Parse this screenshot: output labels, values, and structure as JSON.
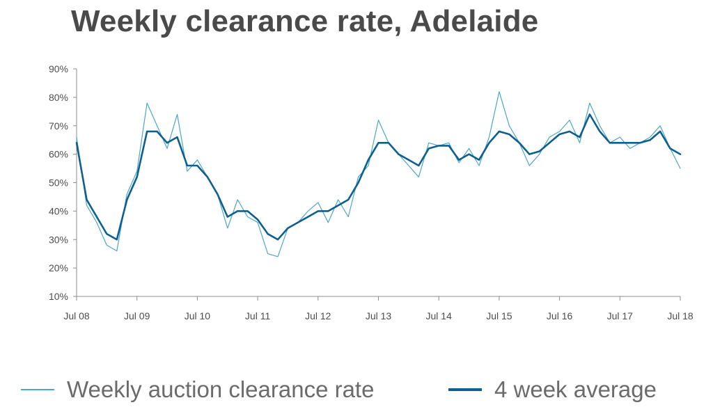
{
  "chart_data": {
    "type": "line",
    "title": "Weekly clearance rate, Adelaide",
    "xlabel": "",
    "ylabel": "",
    "x_ticks": [
      "Jul 08",
      "Jul 09",
      "Jul 10",
      "Jul 11",
      "Jul 12",
      "Jul 13",
      "Jul 14",
      "Jul 15",
      "Jul 16",
      "Jul 17",
      "Jul 18"
    ],
    "y_ticks": [
      "10%",
      "20%",
      "30%",
      "40%",
      "50%",
      "60%",
      "70%",
      "80%",
      "90%"
    ],
    "ylim": [
      10,
      90
    ],
    "xlim": [
      "Jul 08",
      "Jul 18"
    ],
    "grid": false,
    "legend": "bottom",
    "series": [
      {
        "name": "Weekly auction clearance rate",
        "color": "#4aa6cc",
        "x": [
          "Jul 08",
          "Sep 08",
          "Nov 08",
          "Jan 09",
          "Mar 09",
          "May 09",
          "Jul 09",
          "Sep 09",
          "Nov 09",
          "Jan 10",
          "Mar 10",
          "May 10",
          "Jul 10",
          "Sep 10",
          "Nov 10",
          "Jan 11",
          "Mar 11",
          "May 11",
          "Jul 11",
          "Sep 11",
          "Nov 11",
          "Jan 12",
          "Mar 12",
          "May 12",
          "Jul 12",
          "Sep 12",
          "Nov 12",
          "Jan 13",
          "Mar 13",
          "May 13",
          "Jul 13",
          "Sep 13",
          "Nov 13",
          "Jan 14",
          "Mar 14",
          "May 14",
          "Jul 14",
          "Sep 14",
          "Nov 14",
          "Jan 15",
          "Mar 15",
          "May 15",
          "Jul 15",
          "Sep 15",
          "Nov 15",
          "Jan 16",
          "Mar 16",
          "May 16",
          "Jul 16",
          "Sep 16",
          "Nov 16",
          "Jan 17",
          "Mar 17",
          "May 17",
          "Jul 17",
          "Sep 17",
          "Nov 17",
          "Jan 18",
          "Mar 18",
          "May 18",
          "Jul 18"
        ],
        "values": [
          66,
          42,
          36,
          28,
          26,
          46,
          54,
          78,
          70,
          62,
          74,
          54,
          58,
          52,
          46,
          34,
          44,
          38,
          36,
          25,
          24,
          34,
          36,
          40,
          43,
          36,
          44,
          38,
          52,
          56,
          72,
          64,
          60,
          56,
          52,
          64,
          63,
          64,
          57,
          62,
          56,
          66,
          82,
          70,
          64,
          56,
          60,
          66,
          68,
          72,
          64,
          78,
          70,
          64,
          66,
          62,
          64,
          66,
          70,
          62,
          55
        ]
      },
      {
        "name": "4 week average",
        "color": "#0d5f8f",
        "x": [
          "Jul 08",
          "Sep 08",
          "Nov 08",
          "Jan 09",
          "Mar 09",
          "May 09",
          "Jul 09",
          "Sep 09",
          "Nov 09",
          "Jan 10",
          "Mar 10",
          "May 10",
          "Jul 10",
          "Sep 10",
          "Nov 10",
          "Jan 11",
          "Mar 11",
          "May 11",
          "Jul 11",
          "Sep 11",
          "Nov 11",
          "Jan 12",
          "Mar 12",
          "May 12",
          "Jul 12",
          "Sep 12",
          "Nov 12",
          "Jan 13",
          "Mar 13",
          "May 13",
          "Jul 13",
          "Sep 13",
          "Nov 13",
          "Jan 14",
          "Mar 14",
          "May 14",
          "Jul 14",
          "Sep 14",
          "Nov 14",
          "Jan 15",
          "Mar 15",
          "May 15",
          "Jul 15",
          "Sep 15",
          "Nov 15",
          "Jan 16",
          "Mar 16",
          "May 16",
          "Jul 16",
          "Sep 16",
          "Nov 16",
          "Jan 17",
          "Mar 17",
          "May 17",
          "Jul 17",
          "Sep 17",
          "Nov 17",
          "Jan 18",
          "Mar 18",
          "May 18",
          "Jul 18"
        ],
        "values": [
          64,
          44,
          38,
          32,
          30,
          44,
          52,
          68,
          68,
          64,
          66,
          56,
          56,
          52,
          46,
          38,
          40,
          40,
          37,
          32,
          30,
          34,
          36,
          38,
          40,
          40,
          42,
          44,
          50,
          58,
          64,
          64,
          60,
          58,
          56,
          62,
          63,
          63,
          58,
          60,
          58,
          64,
          68,
          67,
          64,
          60,
          61,
          64,
          67,
          68,
          66,
          74,
          68,
          64,
          64,
          64,
          64,
          65,
          68,
          62,
          60
        ]
      }
    ]
  }
}
